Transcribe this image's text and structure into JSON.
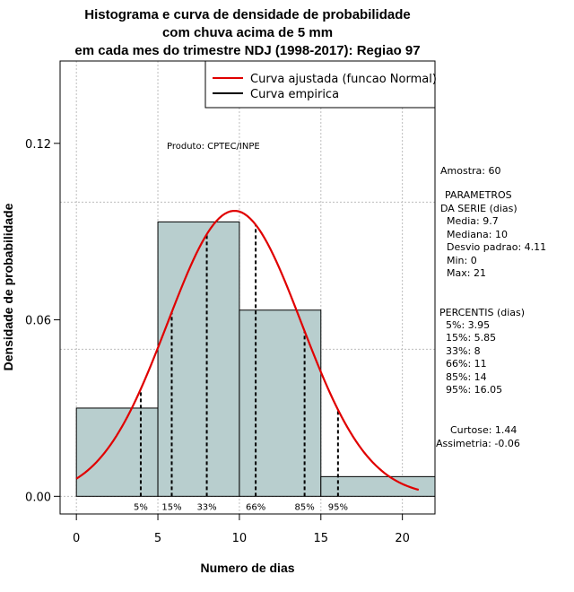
{
  "chart_data": {
    "type": "bar",
    "title_lines": [
      "Histograma e curva de densidade de probabilidade",
      "com chuva acima de 5 mm",
      "em cada mes do trimestre NDJ (1998-2017): Regiao 97"
    ],
    "xlabel": "Numero de dias",
    "ylabel": "Densidade de probabilidade",
    "xlim": [
      -1,
      22
    ],
    "ylim": [
      -0.006,
      0.148
    ],
    "x_ticks": [
      0,
      5,
      10,
      15,
      20
    ],
    "y_ticks": [
      0.0,
      0.06,
      0.12
    ],
    "y_tick_labels": [
      "0.00",
      "0.06",
      "0.12"
    ],
    "bars": [
      {
        "x0": 0,
        "x1": 5,
        "density": 0.03
      },
      {
        "x0": 5,
        "x1": 10,
        "density": 0.0933
      },
      {
        "x0": 10,
        "x1": 15,
        "density": 0.0633
      },
      {
        "x0": 15,
        "x1": 22,
        "density": 0.0067
      }
    ],
    "bar_color": "#b8cece",
    "curve_color": "#e00000",
    "normal_fit": {
      "mean": 9.7,
      "sd": 4.11,
      "x_from": 0,
      "x_to": 21
    },
    "grid_x": [
      0,
      5,
      10,
      15,
      20
    ],
    "grid_y": [
      0.0,
      0.05,
      0.1
    ],
    "percentile_lines": [
      {
        "label": "5%",
        "x": 3.95
      },
      {
        "label": "15%",
        "x": 5.85
      },
      {
        "label": "33%",
        "x": 8
      },
      {
        "label": "66%",
        "x": 11
      },
      {
        "label": "85%",
        "x": 14
      },
      {
        "label": "95%",
        "x": 16.05
      }
    ],
    "legend": {
      "placement": "top-right",
      "entries": [
        {
          "label": "Curva ajustada (funcao Normal)",
          "color": "#e00000"
        },
        {
          "label": "Curva empirica",
          "color": "#000000"
        }
      ]
    },
    "produto": "Produto: CPTEC/INPE",
    "stats": {
      "amostra": "Amostra: 60",
      "param_title_1": "PARAMETROS",
      "param_title_2": "DA SERIE (dias)",
      "media": "Media: 9.7",
      "mediana": "Mediana: 10",
      "desvio": "Desvio padrao: 4.11",
      "min": "Min: 0",
      "max": "Max: 21",
      "perc_title": "PERCENTIS (dias)",
      "p5": "5%: 3.95",
      "p15": "15%: 5.85",
      "p33": "33%: 8",
      "p66": "66%: 11",
      "p85": "85%: 14",
      "p95": "95%: 16.05",
      "curtose": "Curtose: 1.44",
      "assimetria": "Assimetria: -0.06"
    }
  }
}
